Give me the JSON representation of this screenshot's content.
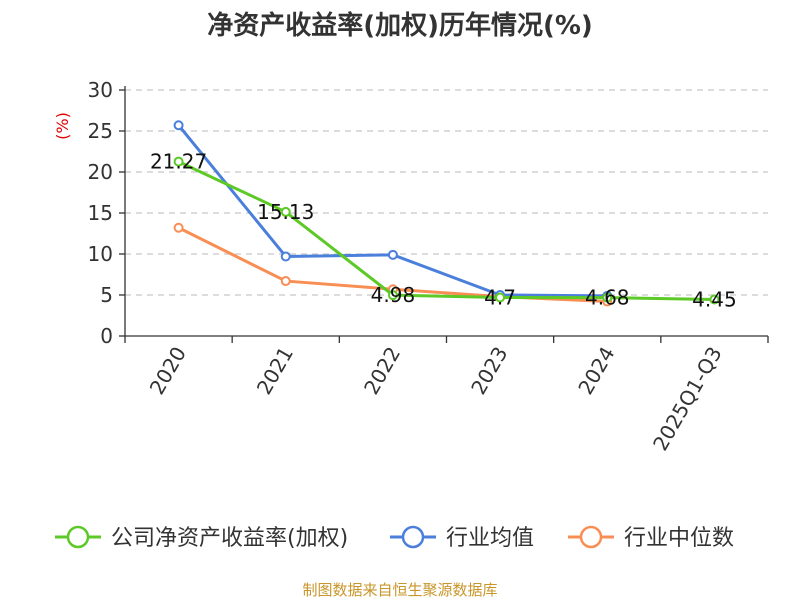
{
  "chart_data": {
    "type": "line",
    "title": "净资产收益率(加权)历年情况(%)",
    "ylabel": "(%)",
    "categories": [
      "2020",
      "2021",
      "2022",
      "2023",
      "2024",
      "2025Q1-Q3"
    ],
    "ylim": [
      0,
      30
    ],
    "yticks": [
      0,
      5,
      10,
      15,
      20,
      25,
      30
    ],
    "grid": true,
    "legend_position": "bottom",
    "series": [
      {
        "name": "公司净资产收益率(加权)",
        "color": "#5cc926",
        "values": [
          21.27,
          15.13,
          4.98,
          4.7,
          4.68,
          4.45
        ],
        "labels": [
          "21.27",
          "15.13",
          "4.98",
          "4.7",
          "4.68",
          "4.45"
        ]
      },
      {
        "name": "行业均值",
        "color": "#4a7fdc",
        "values": [
          25.7,
          9.7,
          9.9,
          5.0,
          4.9,
          null
        ]
      },
      {
        "name": "行业中位数",
        "color": "#f98e55",
        "values": [
          13.2,
          6.7,
          5.7,
          4.8,
          4.2,
          null
        ]
      }
    ],
    "source": "制图数据来自恒生聚源数据库"
  }
}
